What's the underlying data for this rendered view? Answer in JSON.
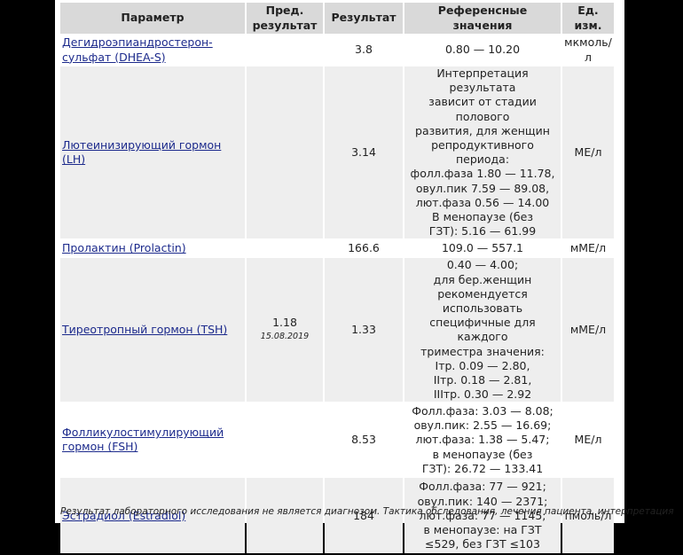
{
  "table": {
    "header": [
      "Параметр",
      "Пред. результат",
      "Результат",
      "Референсные значения",
      "Ед. изм."
    ],
    "rows": [
      {
        "parameter": "Дегидроэпиандростерон-сульфат (DHEA-S)",
        "result": "3.8",
        "reference": [
          "0.80 — 10.20"
        ],
        "unit": "мкмоль/л"
      },
      {
        "parameter": "Лютеинизирующий гормон (LH)",
        "result": "3.14",
        "reference": [
          "Интерпретация результата",
          "зависит от стадии полового",
          "развития, для женщин",
          "репродуктивного периода:",
          "фолл.фаза 1.80 — 11.78,",
          "овул.пик 7.59 — 89.08,",
          "лют.фаза 0.56 — 14.00",
          "В менопаузе (без",
          "ГЗТ): 5.16 — 61.99"
        ],
        "unit": "МЕ/л"
      },
      {
        "parameter": "Пролактин (Prolactin)",
        "result": "166.6",
        "reference": [
          "109.0 — 557.1"
        ],
        "unit": "мМЕ/л"
      },
      {
        "parameter": "Тиреотропный гормон (TSH)",
        "previous": {
          "value": "1.18",
          "date": "15.08.2019"
        },
        "result": "1.33",
        "reference": [
          "0.40 — 4.00;",
          "для бер.женщин",
          "рекомендуется",
          "использовать",
          "специфичные для каждого",
          "триместра значения:",
          "Iтр. 0.09 — 2.80,",
          "IIтр. 0.18 — 2.81,",
          "IIIтр. 0.30 — 2.92"
        ],
        "unit": "мМЕ/л"
      },
      {
        "parameter": "Фолликулостимулирующий гормон (FSH)",
        "result": "8.53",
        "reference": [
          "Фолл.фаза: 3.03 — 8.08;",
          "овул.пик: 2.55 — 16.69;",
          "лют.фаза: 1.38 — 5.47;",
          "в менопаузе (без",
          "ГЗТ): 26.72 — 133.41"
        ],
        "unit": "МЕ/л"
      },
      {
        "parameter": "Эстрадиол (Estradiol)",
        "result": "184",
        "reference": [
          "Фолл.фаза: 77 — 921;",
          "овул.пик: 140 — 2371;",
          "лют.фаза: 77 — 1145;",
          "в менопаузе: на ГЗТ",
          "≤529, без ГЗТ ≤103"
        ],
        "unit": "пмоль/л"
      }
    ]
  },
  "footer": "Результат лабораторного исследования не является диагнозом. Тактика обследования, лечения пациента, интерпретация"
}
